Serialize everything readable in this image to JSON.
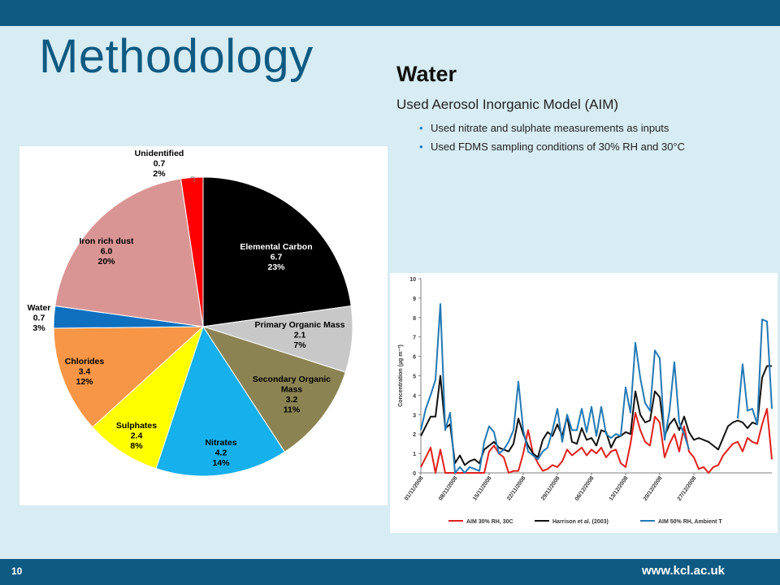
{
  "slide": {
    "title": "Methodology",
    "heading": "Water",
    "subheading": "Used Aerosol Inorganic Model (AIM)",
    "bullets": [
      "Used nitrate and sulphate measurements as inputs",
      "Used FDMS sampling conditions of 30% RH and 30°C"
    ],
    "slide_number": "10",
    "footer_url": "www.kcl.ac.uk",
    "colors": {
      "bar": "#0e5a82",
      "background": "#d7ecf3",
      "title": "#0e5a82",
      "bullet": "#1f7db3"
    }
  },
  "chart_data": [
    {
      "type": "pie",
      "title": "",
      "slices": [
        {
          "name": "Elemental Carbon",
          "value": 6.7,
          "percent": "23%",
          "color": "#000000"
        },
        {
          "name": "Primary Organic Mass",
          "value": 2.1,
          "percent": "7%",
          "color": "#c8c8c8"
        },
        {
          "name": "Secondary Organic Mass",
          "value": 3.2,
          "percent": "11%",
          "color": "#8c8353"
        },
        {
          "name": "Nitrates",
          "value": 4.2,
          "percent": "14%",
          "color": "#16b0ec"
        },
        {
          "name": "Sulphates",
          "value": 2.4,
          "percent": "8%",
          "color": "#ffff00"
        },
        {
          "name": "Chlorides",
          "value": 3.4,
          "percent": "12%",
          "color": "#f79646"
        },
        {
          "name": "Water",
          "value": 0.7,
          "percent": "3%",
          "color": "#0f70bf"
        },
        {
          "name": "Iron rich dust",
          "value": 6.0,
          "percent": "20%",
          "color": "#d99594"
        },
        {
          "name": "Unidentified",
          "value": 0.7,
          "percent": "2%",
          "color": "#ff0000"
        }
      ]
    },
    {
      "type": "line",
      "ylabel": "Concentration (µg m⁻³)",
      "ylim": [
        0,
        10
      ],
      "yticks": [
        "0",
        "1",
        "2",
        "3",
        "4",
        "5",
        "6",
        "7",
        "8",
        "9",
        "10"
      ],
      "x_start": "01/11/2008",
      "x_tick_labels": [
        "01/11/2008",
        "08/11/2008",
        "15/11/2008",
        "22/11/2008",
        "29/11/2008",
        "06/12/2008",
        "13/12/2008",
        "20/12/2008",
        "27/12/2008"
      ],
      "grid": false,
      "legend_position": "bottom",
      "series": [
        {
          "name": "AIM 30% RH, 30C",
          "color": "#e0201c",
          "values": [
            0.3,
            0.8,
            1.3,
            0.0,
            1.2,
            0.0,
            0.0,
            0.0,
            0.0,
            0.0,
            0.0,
            0.0,
            0.0,
            0.0,
            1.1,
            1.4,
            1.0,
            0.8,
            0.0,
            0.1,
            0.1,
            1.0,
            2.2,
            1.0,
            0.5,
            0.1,
            0.2,
            0.4,
            0.3,
            0.6,
            1.2,
            0.9,
            1.1,
            1.3,
            0.9,
            1.2,
            1.0,
            1.3,
            0.8,
            1.1,
            1.2,
            0.5,
            0.3,
            1.5,
            3.1,
            2.2,
            1.6,
            1.4,
            2.9,
            2.6,
            0.8,
            1.5,
            2.0,
            1.1,
            2.4,
            1.1,
            0.8,
            0.2,
            0.3,
            0.0,
            0.3,
            0.4,
            0.9,
            1.2,
            1.5,
            1.6,
            1.1,
            1.8,
            1.6,
            1.5,
            2.5,
            3.3,
            0.7
          ]
        },
        {
          "name": "Harrison et al. (2003)",
          "color": "#111111",
          "values": [
            1.9,
            2.4,
            2.9,
            2.9,
            5.0,
            2.3,
            2.5,
            0.5,
            0.9,
            0.4,
            0.6,
            0.7,
            0.5,
            1.2,
            1.4,
            1.6,
            1.3,
            1.2,
            1.1,
            1.5,
            2.8,
            2.0,
            1.4,
            1.0,
            0.8,
            1.7,
            2.1,
            1.9,
            2.5,
            1.9,
            2.9,
            1.6,
            1.5,
            2.3,
            1.7,
            1.8,
            1.4,
            2.2,
            2.1,
            1.3,
            1.8,
            1.9,
            2.1,
            2.0,
            4.2,
            3.0,
            2.6,
            2.7,
            4.2,
            3.9,
            1.9,
            2.5,
            2.8,
            2.2,
            2.9,
            2.1,
            1.7,
            1.8,
            1.7,
            1.6,
            1.4,
            1.2,
            1.8,
            2.4,
            2.6,
            2.7,
            2.6,
            2.3,
            2.6,
            2.5,
            4.9,
            5.5,
            5.5
          ]
        },
        {
          "name": "AIM 50% RH, Ambient T",
          "color": "#2279b5",
          "values": [
            2.2,
            3.3,
            4.0,
            4.8,
            8.7,
            2.2,
            3.1,
            0.0,
            0.3,
            0.0,
            0.3,
            0.2,
            0.1,
            1.6,
            2.4,
            2.1,
            1.0,
            1.2,
            1.6,
            2.2,
            4.7,
            2.2,
            1.1,
            0.9,
            0.7,
            1.1,
            1.3,
            2.2,
            3.3,
            1.6,
            3.0,
            2.2,
            2.2,
            3.3,
            2.1,
            3.4,
            1.9,
            3.4,
            2.0,
            1.8,
            2.0,
            1.9,
            4.4,
            3.1,
            6.7,
            4.9,
            3.6,
            3.2,
            6.3,
            5.9,
            1.7,
            3.2,
            5.7,
            2.6,
            2.0,
            1.2,
            null,
            null,
            null,
            null,
            null,
            null,
            null,
            null,
            null,
            2.8,
            5.6,
            3.2,
            3.3,
            2.5,
            7.9,
            7.8,
            3.3
          ]
        }
      ]
    }
  ]
}
